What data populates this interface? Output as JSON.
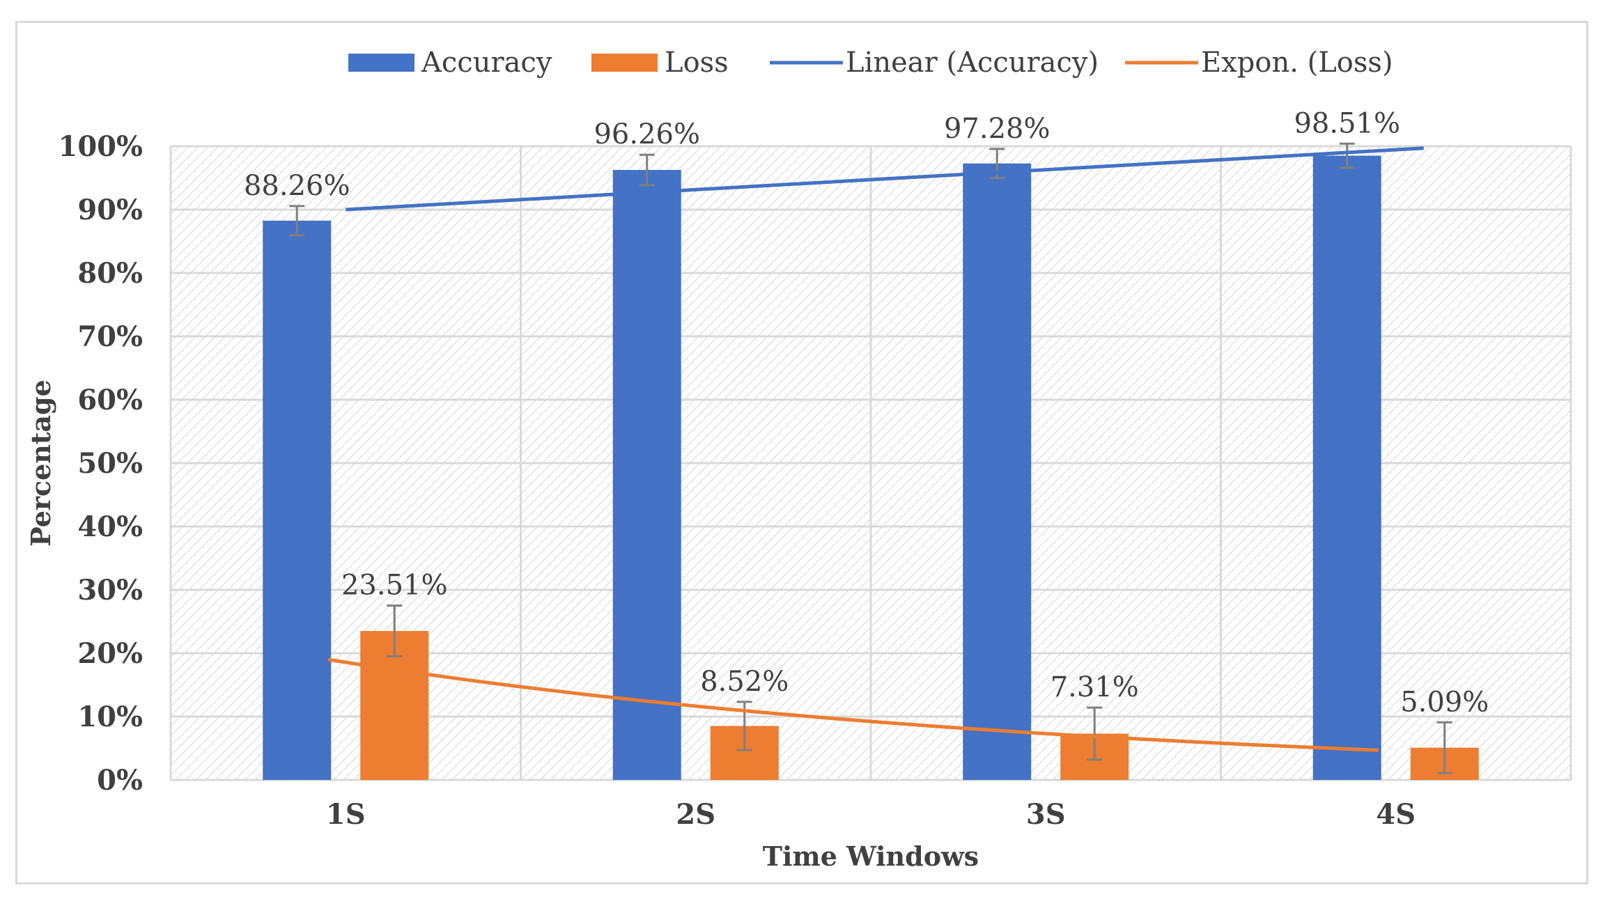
{
  "colors": {
    "accuracy": "#4472c4",
    "loss": "#ed7d31",
    "accuracy_trend": "#4472c4",
    "loss_trend": "#ed7d31",
    "grid": "#d9d9d9",
    "error_bar": "#7f7f7f",
    "text": "#404040"
  },
  "chart_data": {
    "type": "bar",
    "title": "",
    "xlabel": "Time Windows",
    "ylabel": "Percentage",
    "ylim": [
      0,
      100
    ],
    "y_ticks": [
      0,
      10,
      20,
      30,
      40,
      50,
      60,
      70,
      80,
      90,
      100
    ],
    "y_tick_labels": [
      "0%",
      "10%",
      "20%",
      "30%",
      "40%",
      "50%",
      "60%",
      "70%",
      "80%",
      "90%",
      "100%"
    ],
    "categories": [
      "1S",
      "2S",
      "3S",
      "4S"
    ],
    "grid": true,
    "legend_position": "top",
    "series": [
      {
        "name": "Accuracy",
        "values": [
          88.26,
          96.26,
          97.28,
          98.51
        ],
        "labels": [
          "88.26%",
          "96.26%",
          "97.28%",
          "98.51%"
        ],
        "error": [
          2.3,
          2.4,
          2.3,
          1.9
        ]
      },
      {
        "name": "Loss",
        "values": [
          23.51,
          8.52,
          7.31,
          5.09
        ],
        "labels": [
          "23.51%",
          "8.52%",
          "7.31%",
          "5.09%"
        ],
        "error": [
          4.0,
          3.8,
          4.1,
          4.0
        ]
      }
    ],
    "trendlines": [
      {
        "name": "Linear (Accuracy)",
        "type": "linear",
        "series": "Accuracy",
        "start": 90.0,
        "end": 99.7
      },
      {
        "name": "Expon. (Loss)",
        "type": "exponential",
        "series": "Loss",
        "start": 19.0,
        "end": 4.7
      }
    ],
    "legend": [
      "Accuracy",
      "Loss",
      "Linear (Accuracy)",
      "Expon. (Loss)"
    ]
  }
}
